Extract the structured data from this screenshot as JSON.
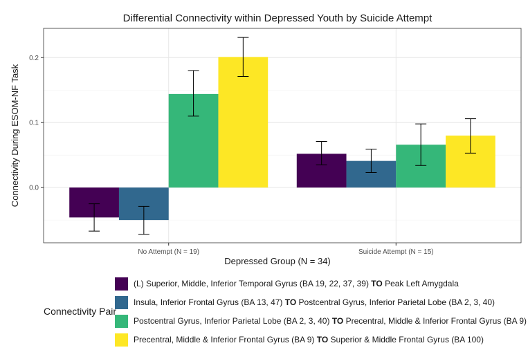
{
  "chart_data": {
    "type": "bar",
    "title": "Differential Connectivity within Depressed Youth by Suicide Attempt",
    "xlabel": "Depressed Group (N = 34)",
    "ylabel": "Connectivity During ESOM-NF Task",
    "categories": [
      "No Attempt (N = 19)",
      "Suicide Attempt (N = 15)"
    ],
    "ylim": [
      -0.085,
      0.245
    ],
    "yticks": [
      0.0,
      0.1,
      0.2
    ],
    "ytick_labels": [
      "0.0",
      "0.1",
      "0.2"
    ],
    "grid": true,
    "legend_position": "bottom",
    "legend_title": "Connectivity Pair",
    "series": [
      {
        "name_parts": [
          "(L) Superior, Middle, Inferior Temporal Gyrus (BA 19, 22, 37, 39) ",
          "TO",
          " Peak Left Amygdala"
        ],
        "color": "#440154",
        "values": [
          -0.046,
          0.052
        ],
        "error_low": [
          -0.067,
          0.035
        ],
        "error_high": [
          -0.025,
          0.071
        ]
      },
      {
        "name_parts": [
          "Insula, Inferior Frontal Gyrus (BA 13, 47) ",
          "TO",
          " Postcentral Gyrus, Inferior Parietal Lobe (BA 2, 3, 40)"
        ],
        "color": "#31688E",
        "values": [
          -0.05,
          0.041
        ],
        "error_low": [
          -0.072,
          0.023
        ],
        "error_high": [
          -0.029,
          0.059
        ]
      },
      {
        "name_parts": [
          "Postcentral Gyrus, Inferior Parietal Lobe (BA 2, 3, 40) ",
          "TO",
          " Precentral, Middle & Inferior Frontal Gyrus (BA 9)"
        ],
        "color": "#35B779",
        "values": [
          0.144,
          0.066
        ],
        "error_low": [
          0.11,
          0.034
        ],
        "error_high": [
          0.18,
          0.098
        ]
      },
      {
        "name_parts": [
          "Precentral, Middle & Inferior Frontal Gyrus (BA 9) ",
          "TO",
          " Superior & Middle Frontal Gyrus (BA 100)"
        ],
        "color": "#FDE725",
        "values": [
          0.201,
          0.08
        ],
        "error_low": [
          0.171,
          0.053
        ],
        "error_high": [
          0.231,
          0.106
        ]
      }
    ]
  }
}
